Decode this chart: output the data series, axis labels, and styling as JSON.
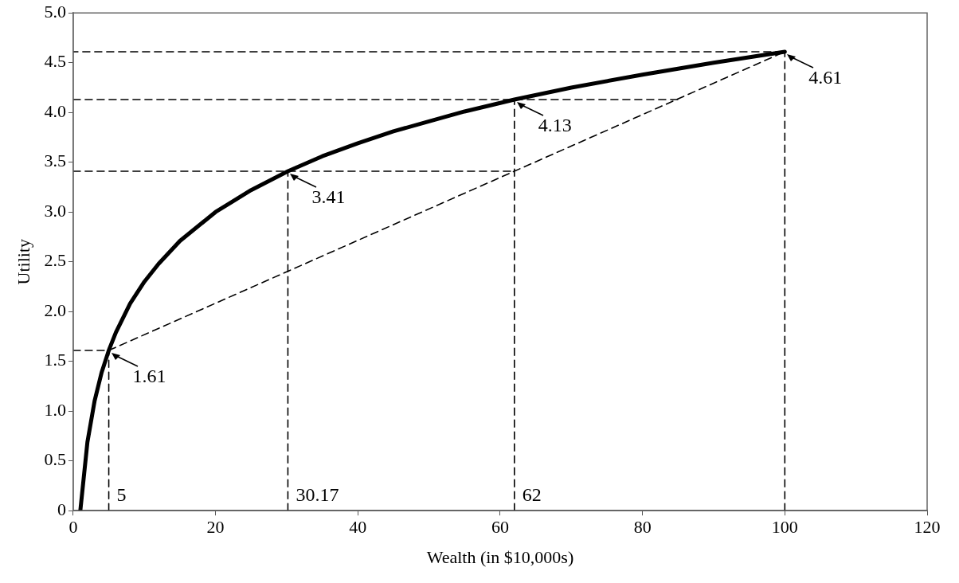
{
  "chart_data": {
    "type": "line",
    "xlabel": "Wealth (in $10,000s)",
    "ylabel": "Utility",
    "xlim": [
      0,
      120
    ],
    "xticks": [
      0,
      20,
      40,
      60,
      80,
      100,
      120
    ],
    "ylim": [
      0,
      5
    ],
    "yticks": [
      0,
      {
        "value": 0.5,
        "label": "0.5"
      },
      {
        "value": 1,
        "label": "1.0"
      },
      {
        "value": 1.5,
        "label": "1.5"
      },
      {
        "value": 2,
        "label": "2.0"
      },
      {
        "value": 2.5,
        "label": "2.5"
      },
      {
        "value": 3,
        "label": "3.0"
      },
      {
        "value": 3.5,
        "label": "3.5"
      },
      {
        "value": 4,
        "label": "4.0"
      },
      {
        "value": 4.5,
        "label": "4.5"
      },
      {
        "value": 5,
        "label": "5.0"
      }
    ],
    "grid": false,
    "legend": false,
    "marker": "none",
    "series": [
      {
        "color": "#000000",
        "line_style": "solid",
        "x": [
          1,
          2,
          3,
          4,
          5,
          6,
          8,
          10,
          12,
          15,
          20,
          25,
          30.17,
          35,
          40,
          45,
          50,
          55,
          62,
          70,
          80,
          90,
          100
        ],
        "values": [
          0,
          0.69,
          1.1,
          1.39,
          1.61,
          1.79,
          2.08,
          2.3,
          2.48,
          2.71,
          3,
          3.22,
          3.41,
          3.56,
          3.69,
          3.81,
          3.91,
          4.01,
          4.13,
          4.25,
          4.38,
          4.5,
          4.61
        ]
      },
      {
        "color": "#000000",
        "line_style": "dashed",
        "x": [
          0,
          5,
          100,
          0
        ],
        "values": [
          1.61,
          1.61,
          4.61,
          4.61
        ]
      },
      {
        "color": "#000000",
        "line_style": "dashed",
        "x": [
          0,
          85
        ],
        "values": [
          4.13,
          4.13
        ]
      },
      {
        "color": "#000000",
        "line_style": "dashed",
        "x": [
          0,
          62
        ],
        "values": [
          3.41,
          3.41
        ]
      },
      {
        "color": "#000000",
        "line_style": "dashed",
        "x": [
          5,
          5
        ],
        "values": [
          0,
          1.61
        ]
      },
      {
        "color": "#000000",
        "line_style": "dashed",
        "x": [
          30.17,
          30.17
        ],
        "values": [
          0,
          3.41
        ]
      },
      {
        "color": "#000000",
        "line_style": "dashed",
        "x": [
          62,
          62
        ],
        "values": [
          0,
          4.13
        ]
      },
      {
        "color": "#000000",
        "line_style": "dashed",
        "x": [
          100,
          100
        ],
        "values": [
          0,
          4.61
        ]
      }
    ],
    "annotations": [
      {
        "text": "1.61",
        "x": 5,
        "y": 1.61
      },
      {
        "text": "3.41",
        "x": 30.17,
        "y": 3.41
      },
      {
        "text": "4.13",
        "x": 62,
        "y": 4.13
      },
      {
        "text": "4.61",
        "x": 100,
        "y": 4.61
      },
      {
        "text": "5",
        "x": 5,
        "y": 0
      },
      {
        "text": "30.17",
        "x": 30.17,
        "y": 0
      },
      {
        "text": "62",
        "x": 62,
        "y": 0
      }
    ]
  }
}
